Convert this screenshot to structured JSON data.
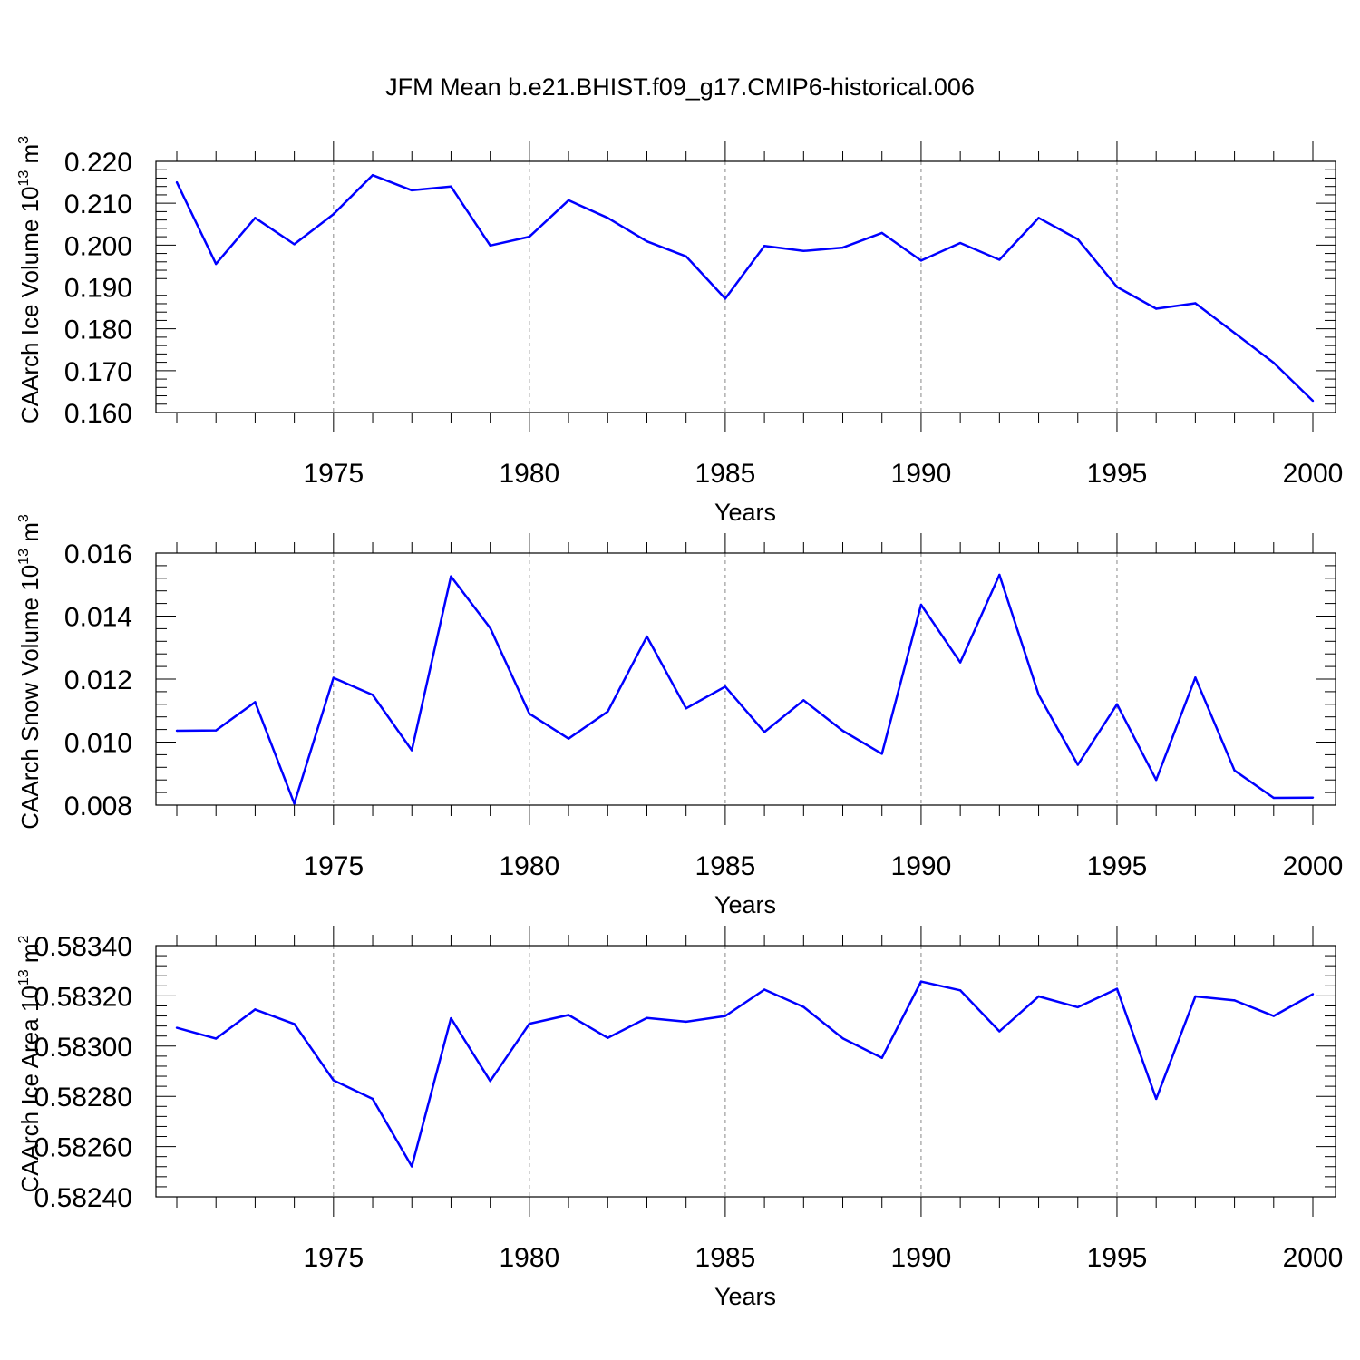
{
  "title": "JFM Mean b.e21.BHIST.f09_g17.CMIP6-historical.006",
  "chart_data": [
    {
      "type": "line",
      "title": "",
      "xlabel": "Years",
      "ylabel": "CAArch Ice Volume 10",
      "ylabel_exponent": "13",
      "ylabel_unit": " m",
      "ylabel_unit_exponent": "3",
      "xlim": [
        1971,
        2000
      ],
      "ylim": [
        0.16,
        0.22
      ],
      "yticks": [
        "0.160",
        "0.170",
        "0.180",
        "0.190",
        "0.200",
        "0.210",
        "0.220"
      ],
      "ytick_values": [
        0.16,
        0.17,
        0.18,
        0.19,
        0.2,
        0.21,
        0.22
      ],
      "xticks": [
        "1975",
        "1980",
        "1985",
        "1990",
        "1995",
        "2000"
      ],
      "xtick_values": [
        1975,
        1980,
        1985,
        1990,
        1995,
        2000
      ],
      "grid": "dashed vertical at major x ticks",
      "line_color": "#0000ff",
      "series": [
        {
          "x": [
            1971,
            1972,
            1973,
            1974,
            1975,
            1976,
            1977,
            1978,
            1979,
            1980,
            1981,
            1982,
            1983,
            1984,
            1985,
            1986,
            1987,
            1988,
            1989,
            1990,
            1991,
            1992,
            1993,
            1994,
            1995,
            1996,
            1997,
            1998,
            1999,
            2000
          ],
          "values": [
            0.215,
            0.1955,
            0.2065,
            0.2002,
            0.2074,
            0.2167,
            0.2131,
            0.214,
            0.1999,
            0.202,
            0.2107,
            0.2065,
            0.2009,
            0.1973,
            0.1872,
            0.1998,
            0.1986,
            0.1994,
            0.2029,
            0.1963,
            0.2005,
            0.1965,
            0.2065,
            0.2014,
            0.19,
            0.1848,
            0.1861,
            0.179,
            0.1719,
            0.1628
          ]
        }
      ]
    },
    {
      "type": "line",
      "title": "",
      "xlabel": "Years",
      "ylabel": "CAArch Snow Volume 10",
      "ylabel_exponent": "13",
      "ylabel_unit": " m",
      "ylabel_unit_exponent": "3",
      "xlim": [
        1971,
        2000
      ],
      "ylim": [
        0.008,
        0.016
      ],
      "yticks": [
        "0.008",
        "0.010",
        "0.012",
        "0.014",
        "0.016"
      ],
      "ytick_values": [
        0.008,
        0.01,
        0.012,
        0.014,
        0.016
      ],
      "xticks": [
        "1975",
        "1980",
        "1985",
        "1990",
        "1995",
        "2000"
      ],
      "xtick_values": [
        1975,
        1980,
        1985,
        1990,
        1995,
        2000
      ],
      "grid": "dashed vertical at major x ticks",
      "line_color": "#0000ff",
      "series": [
        {
          "x": [
            1971,
            1972,
            1973,
            1974,
            1975,
            1976,
            1977,
            1978,
            1979,
            1980,
            1981,
            1982,
            1983,
            1984,
            1985,
            1986,
            1987,
            1988,
            1989,
            1990,
            1991,
            1992,
            1993,
            1994,
            1995,
            1996,
            1997,
            1998,
            1999,
            2000
          ],
          "values": [
            0.01036,
            0.01037,
            0.01127,
            0.00805,
            0.01204,
            0.0115,
            0.00974,
            0.01526,
            0.01362,
            0.0109,
            0.01011,
            0.01097,
            0.01335,
            0.01107,
            0.01176,
            0.01032,
            0.01133,
            0.01036,
            0.00963,
            0.01436,
            0.01253,
            0.01531,
            0.0115,
            0.00928,
            0.0112,
            0.0088,
            0.01205,
            0.0091,
            0.00823,
            0.00824
          ]
        }
      ]
    },
    {
      "type": "line",
      "title": "",
      "xlabel": "Years",
      "ylabel": "CAArch Ice Area 10",
      "ylabel_exponent": "13",
      "ylabel_unit": " m",
      "ylabel_unit_exponent": "2",
      "xlim": [
        1971,
        2000
      ],
      "ylim": [
        0.5824,
        0.5834
      ],
      "yticks": [
        "0.58240",
        "0.58260",
        "0.58280",
        "0.58300",
        "0.58320",
        "0.58340"
      ],
      "ytick_values": [
        0.5824,
        0.5826,
        0.5828,
        0.583,
        0.5832,
        0.5834
      ],
      "xticks": [
        "1975",
        "1980",
        "1985",
        "1990",
        "1995",
        "2000"
      ],
      "xtick_values": [
        1975,
        1980,
        1985,
        1990,
        1995,
        2000
      ],
      "grid": "dashed vertical at major x ticks",
      "line_color": "#0000ff",
      "series": [
        {
          "x": [
            1971,
            1972,
            1973,
            1974,
            1975,
            1976,
            1977,
            1978,
            1979,
            1980,
            1981,
            1982,
            1983,
            1984,
            1985,
            1986,
            1987,
            1988,
            1989,
            1990,
            1991,
            1992,
            1993,
            1994,
            1995,
            1996,
            1997,
            1998,
            1999,
            2000
          ],
          "values": [
            0.583073,
            0.58303,
            0.583146,
            0.583088,
            0.582864,
            0.58279,
            0.582521,
            0.583111,
            0.582861,
            0.583089,
            0.583124,
            0.583033,
            0.583112,
            0.583097,
            0.58312,
            0.583225,
            0.583156,
            0.583031,
            0.582953,
            0.583257,
            0.583222,
            0.583059,
            0.583198,
            0.583155,
            0.583228,
            0.58279,
            0.583198,
            0.583182,
            0.58312,
            0.583207
          ]
        }
      ]
    }
  ]
}
